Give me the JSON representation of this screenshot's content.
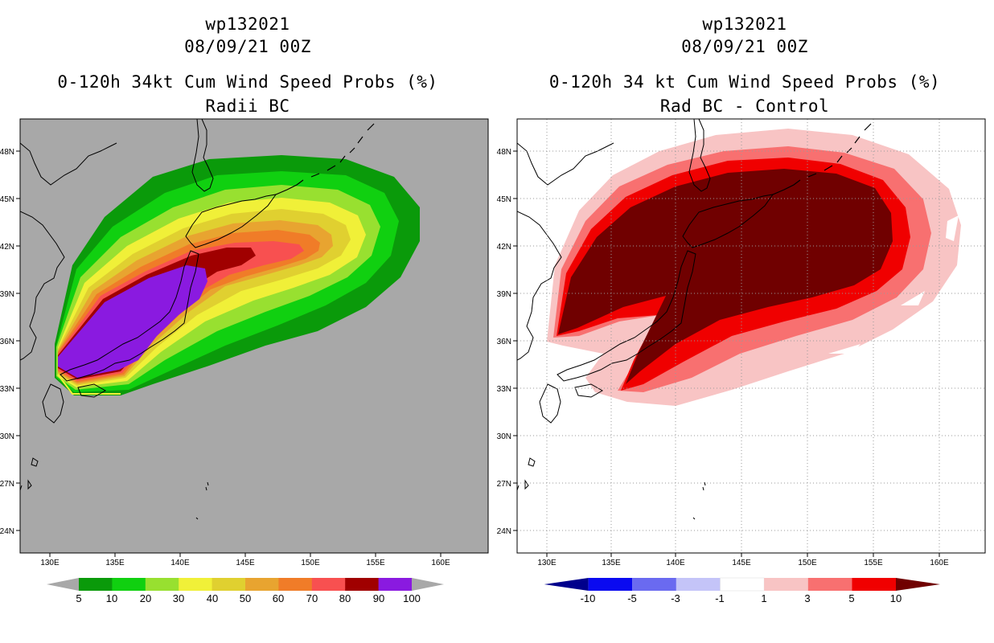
{
  "left_panel": {
    "storm_id": "wp132021",
    "datetime": "08/09/21 00Z",
    "title": "0-120h 34kt Cum Wind Speed Probs (%)",
    "subtitle": "Radii BC",
    "background_color": "#a8a8a8",
    "colorbar": {
      "labels": [
        "5",
        "10",
        "20",
        "30",
        "40",
        "50",
        "60",
        "70",
        "80",
        "90",
        "100"
      ],
      "colors": [
        "#0a9a0a",
        "#10d010",
        "#98e030",
        "#f0f038",
        "#e0d030",
        "#e8a430",
        "#f07c28",
        "#f85050",
        "#a00000",
        "#8a1ae0"
      ]
    }
  },
  "right_panel": {
    "storm_id": "wp132021",
    "datetime": "08/09/21 00Z",
    "title": "0-120h 34 kt Cum Wind Speed Probs (%)",
    "subtitle": "Rad BC - Control",
    "background_color": "#ffffff",
    "colorbar": {
      "labels": [
        "-10",
        "-5",
        "-3",
        "-1",
        "1",
        "3",
        "5",
        "10"
      ],
      "colors": [
        "#00008c",
        "#0a0af0",
        "#6a6af0",
        "#c4c4f8",
        "#ffffff",
        "#f8c4c4",
        "#f87070",
        "#f00000",
        "#700000"
      ]
    }
  },
  "axes": {
    "lon_labels": [
      "130E",
      "135E",
      "140E",
      "145E",
      "150E",
      "155E",
      "160E"
    ],
    "lat_labels": [
      "48N",
      "45N",
      "42N",
      "39N",
      "36N",
      "33N",
      "30N",
      "27N",
      "24N"
    ]
  }
}
